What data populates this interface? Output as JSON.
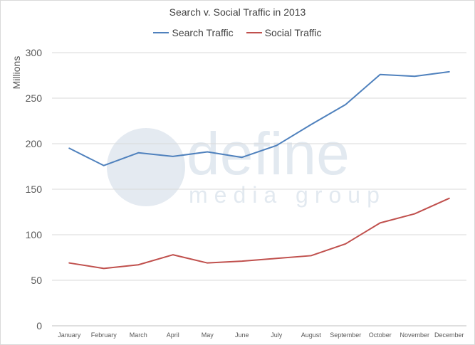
{
  "chart_data": {
    "type": "line",
    "title": "Search v. Social Traffic in 2013",
    "ylabel": "Millions",
    "xlabel": "",
    "categories": [
      "January",
      "February",
      "March",
      "April",
      "May",
      "June",
      "July",
      "August",
      "September",
      "October",
      "November",
      "December"
    ],
    "ylim": [
      0,
      300
    ],
    "yticks": [
      0,
      50,
      100,
      150,
      200,
      250,
      300
    ],
    "grid": true,
    "legend_position": "top",
    "series": [
      {
        "name": "Search Traffic",
        "color": "#4f81bd",
        "values": [
          195,
          176,
          190,
          186,
          191,
          185,
          198,
          221,
          243,
          276,
          274,
          279
        ]
      },
      {
        "name": "Social Traffic",
        "color": "#c0504d",
        "values": [
          69,
          63,
          67,
          78,
          69,
          71,
          74,
          77,
          90,
          113,
          123,
          140
        ]
      }
    ],
    "watermark": {
      "line1": "define",
      "line2": "media group"
    }
  }
}
